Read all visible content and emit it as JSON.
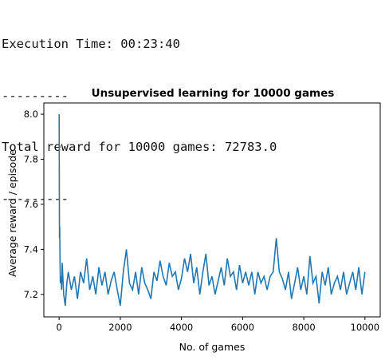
{
  "console": {
    "lines": [
      "Execution Time: 00:23:40",
      "---------",
      "Total reward for 10000 games: 72783.0",
      "---------"
    ]
  },
  "chart_data": {
    "type": "line",
    "title": "Unsupervised learning for 10000 games",
    "xlabel": "No. of games",
    "ylabel": "Average reward / episode",
    "xlim": [
      -500,
      10500
    ],
    "ylim": [
      7.1,
      8.05
    ],
    "xticks": [
      0,
      2000,
      4000,
      6000,
      8000,
      10000
    ],
    "yticks": [
      7.2,
      7.4,
      7.6,
      7.8,
      8.0
    ],
    "ytick_labels": [
      "7.2",
      "7.4",
      "7.6",
      "7.8",
      "8.0"
    ],
    "grid": false,
    "color": "#1f77b4",
    "series": [
      {
        "x": [
          0,
          10,
          20,
          30,
          40,
          60,
          80,
          100,
          150,
          200,
          250,
          300,
          400,
          500,
          600,
          700,
          800,
          900,
          1000,
          1100,
          1200,
          1300,
          1400,
          1500,
          1600,
          1700,
          1800,
          1900,
          2000,
          2100,
          2200,
          2300,
          2400,
          2500,
          2600,
          2700,
          2800,
          2900,
          3000,
          3100,
          3200,
          3300,
          3400,
          3500,
          3600,
          3700,
          3800,
          3900,
          4000,
          4100,
          4200,
          4300,
          4400,
          4500,
          4600,
          4700,
          4800,
          4900,
          5000,
          5100,
          5200,
          5300,
          5400,
          5500,
          5600,
          5700,
          5800,
          5900,
          6000,
          6100,
          6200,
          6300,
          6400,
          6500,
          6600,
          6700,
          6800,
          6900,
          7000,
          7100,
          7200,
          7300,
          7400,
          7500,
          7600,
          7700,
          7800,
          7900,
          8000,
          8100,
          8200,
          8300,
          8400,
          8500,
          8600,
          8700,
          8800,
          8900,
          9000,
          9100,
          9200,
          9300,
          9400,
          9500,
          9600,
          9700,
          9800,
          9900,
          10000
        ],
        "y": [
          8.0,
          7.45,
          7.5,
          7.35,
          7.25,
          7.28,
          7.22,
          7.34,
          7.2,
          7.15,
          7.25,
          7.3,
          7.22,
          7.28,
          7.18,
          7.3,
          7.25,
          7.36,
          7.22,
          7.28,
          7.2,
          7.32,
          7.24,
          7.3,
          7.2,
          7.26,
          7.3,
          7.22,
          7.15,
          7.3,
          7.4,
          7.25,
          7.22,
          7.3,
          7.2,
          7.32,
          7.25,
          7.22,
          7.18,
          7.3,
          7.26,
          7.35,
          7.28,
          7.24,
          7.34,
          7.28,
          7.3,
          7.22,
          7.27,
          7.36,
          7.3,
          7.38,
          7.25,
          7.32,
          7.2,
          7.3,
          7.38,
          7.24,
          7.28,
          7.2,
          7.26,
          7.32,
          7.24,
          7.36,
          7.28,
          7.3,
          7.22,
          7.33,
          7.25,
          7.3,
          7.24,
          7.3,
          7.2,
          7.3,
          7.25,
          7.28,
          7.22,
          7.28,
          7.3,
          7.45,
          7.3,
          7.27,
          7.22,
          7.3,
          7.18,
          7.25,
          7.32,
          7.22,
          7.28,
          7.2,
          7.37,
          7.25,
          7.28,
          7.16,
          7.3,
          7.24,
          7.32,
          7.2,
          7.25,
          7.28,
          7.22,
          7.3,
          7.2,
          7.25,
          7.3,
          7.22,
          7.32,
          7.2,
          7.3
        ]
      }
    ]
  }
}
